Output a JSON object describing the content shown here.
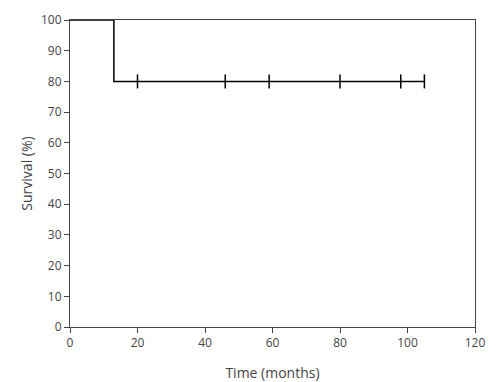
{
  "chart_data": {
    "type": "line",
    "xlabel": "Time (months)",
    "ylabel": "Survival (%)",
    "xlim": [
      0,
      120
    ],
    "ylim": [
      0,
      100
    ],
    "xticks": [
      0,
      20,
      40,
      60,
      80,
      100,
      120
    ],
    "yticks": [
      0,
      10,
      20,
      30,
      40,
      50,
      60,
      70,
      80,
      90,
      100
    ],
    "color": "#000000",
    "grid": false,
    "series": [
      {
        "type": "line",
        "line_style": "step",
        "x": [
          0,
          13,
          13,
          105
        ],
        "values": [
          100,
          100,
          80.0,
          80.0
        ]
      },
      {
        "type": "scatter",
        "marker": "vline",
        "x": [
          20,
          46,
          59,
          80,
          98,
          105
        ],
        "values": [
          80.0,
          80.0,
          80.0,
          80.0,
          80.0,
          80.0
        ]
      }
    ]
  }
}
